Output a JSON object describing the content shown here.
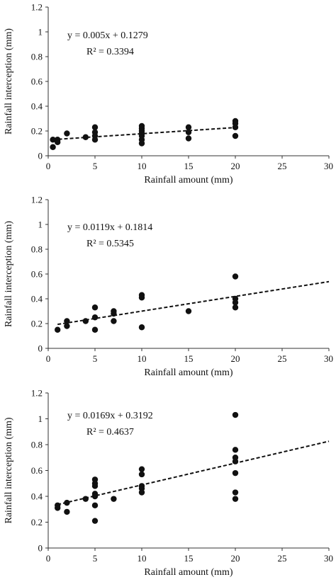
{
  "chart_data": [
    {
      "type": "scatter",
      "xlabel": "Rainfall amount (mm)",
      "ylabel": "Rainfall interception (mm)",
      "xlim": [
        0,
        30
      ],
      "ylim": [
        0,
        1.2
      ],
      "xticks": [
        0,
        5,
        10,
        15,
        20,
        25,
        30
      ],
      "xtick_labels": [
        "0",
        "5",
        "10",
        "15",
        "20",
        "25",
        "30"
      ],
      "yticks": [
        0,
        0.2,
        0.4,
        0.6,
        0.8,
        1,
        1.2
      ],
      "ytick_labels": [
        "0",
        "0.2",
        "0.4",
        "0.6",
        "0.8",
        "1",
        "1.2"
      ],
      "grid": false,
      "trendline": {
        "slope": 0.005,
        "intercept": 0.1279,
        "x_range": [
          0.5,
          20
        ],
        "style": "dashed"
      },
      "equation_text": "y = 0.005x + 0.1279",
      "r2_text": "R² = 0.3394",
      "points": [
        {
          "x": 0.5,
          "y": 0.13
        },
        {
          "x": 0.5,
          "y": 0.07
        },
        {
          "x": 1,
          "y": 0.13
        },
        {
          "x": 1,
          "y": 0.11
        },
        {
          "x": 2,
          "y": 0.18
        },
        {
          "x": 4,
          "y": 0.15
        },
        {
          "x": 5,
          "y": 0.23
        },
        {
          "x": 5,
          "y": 0.19
        },
        {
          "x": 5,
          "y": 0.16
        },
        {
          "x": 5,
          "y": 0.13
        },
        {
          "x": 10,
          "y": 0.24
        },
        {
          "x": 10,
          "y": 0.22
        },
        {
          "x": 10,
          "y": 0.2
        },
        {
          "x": 10,
          "y": 0.18
        },
        {
          "x": 10,
          "y": 0.16
        },
        {
          "x": 10,
          "y": 0.13
        },
        {
          "x": 10,
          "y": 0.1
        },
        {
          "x": 15,
          "y": 0.23
        },
        {
          "x": 15,
          "y": 0.19
        },
        {
          "x": 15,
          "y": 0.14
        },
        {
          "x": 20,
          "y": 0.28
        },
        {
          "x": 20,
          "y": 0.26
        },
        {
          "x": 20,
          "y": 0.23
        },
        {
          "x": 20,
          "y": 0.16
        }
      ]
    },
    {
      "type": "scatter",
      "xlabel": "Rainfall amount (mm)",
      "ylabel": "Rainfall interception (mm)",
      "xlim": [
        0,
        30
      ],
      "ylim": [
        0,
        1.2
      ],
      "xticks": [
        0,
        5,
        10,
        15,
        20,
        25,
        30
      ],
      "xtick_labels": [
        "0",
        "5",
        "10",
        "15",
        "20",
        "25",
        "30"
      ],
      "yticks": [
        0,
        0.2,
        0.4,
        0.6,
        0.8,
        1,
        1.2
      ],
      "ytick_labels": [
        "0",
        "0.2",
        "0.4",
        "0.6",
        "0.8",
        "1",
        "1.2"
      ],
      "grid": false,
      "trendline": {
        "slope": 0.0119,
        "intercept": 0.1814,
        "x_range": [
          1,
          30
        ],
        "style": "dashed"
      },
      "equation_text": "y = 0.0119x + 0.1814",
      "r2_text": "R² = 0.5345",
      "points": [
        {
          "x": 1,
          "y": 0.15
        },
        {
          "x": 2,
          "y": 0.22
        },
        {
          "x": 2,
          "y": 0.18
        },
        {
          "x": 4,
          "y": 0.22
        },
        {
          "x": 5,
          "y": 0.33
        },
        {
          "x": 5,
          "y": 0.25
        },
        {
          "x": 5,
          "y": 0.15
        },
        {
          "x": 7,
          "y": 0.3
        },
        {
          "x": 7,
          "y": 0.28
        },
        {
          "x": 7,
          "y": 0.22
        },
        {
          "x": 10,
          "y": 0.43
        },
        {
          "x": 10,
          "y": 0.41
        },
        {
          "x": 10,
          "y": 0.17
        },
        {
          "x": 15,
          "y": 0.3
        },
        {
          "x": 20,
          "y": 0.58
        },
        {
          "x": 20,
          "y": 0.4
        },
        {
          "x": 20,
          "y": 0.37
        },
        {
          "x": 20,
          "y": 0.33
        }
      ]
    },
    {
      "type": "scatter",
      "xlabel": "Rainfall amount (mm)",
      "ylabel": "Rainfall interception (mm)",
      "xlim": [
        0,
        30
      ],
      "ylim": [
        0,
        1.2
      ],
      "xticks": [
        0,
        5,
        10,
        15,
        20,
        25,
        30
      ],
      "xtick_labels": [
        "0",
        "5",
        "10",
        "15",
        "20",
        "25",
        "30"
      ],
      "yticks": [
        0,
        0.2,
        0.4,
        0.6,
        0.8,
        1,
        1.2
      ],
      "ytick_labels": [
        "0",
        "0.2",
        "0.4",
        "0.6",
        "0.8",
        "1",
        "1.2"
      ],
      "grid": false,
      "trendline": {
        "slope": 0.0169,
        "intercept": 0.3192,
        "x_range": [
          1,
          30
        ],
        "style": "dashed"
      },
      "equation_text": "y = 0.0169x + 0.3192",
      "r2_text": "R² = 0.4637",
      "points": [
        {
          "x": 1,
          "y": 0.33
        },
        {
          "x": 1,
          "y": 0.31
        },
        {
          "x": 2,
          "y": 0.35
        },
        {
          "x": 2,
          "y": 0.28
        },
        {
          "x": 4,
          "y": 0.38
        },
        {
          "x": 5,
          "y": 0.53
        },
        {
          "x": 5,
          "y": 0.5
        },
        {
          "x": 5,
          "y": 0.48
        },
        {
          "x": 5,
          "y": 0.42
        },
        {
          "x": 5,
          "y": 0.4
        },
        {
          "x": 5,
          "y": 0.33
        },
        {
          "x": 5,
          "y": 0.21
        },
        {
          "x": 7,
          "y": 0.38
        },
        {
          "x": 10,
          "y": 0.61
        },
        {
          "x": 10,
          "y": 0.57
        },
        {
          "x": 10,
          "y": 0.48
        },
        {
          "x": 10,
          "y": 0.46
        },
        {
          "x": 10,
          "y": 0.43
        },
        {
          "x": 20,
          "y": 1.03
        },
        {
          "x": 20,
          "y": 0.76
        },
        {
          "x": 20,
          "y": 0.7
        },
        {
          "x": 20,
          "y": 0.67
        },
        {
          "x": 20,
          "y": 0.58
        },
        {
          "x": 20,
          "y": 0.43
        },
        {
          "x": 20,
          "y": 0.38
        }
      ]
    }
  ]
}
